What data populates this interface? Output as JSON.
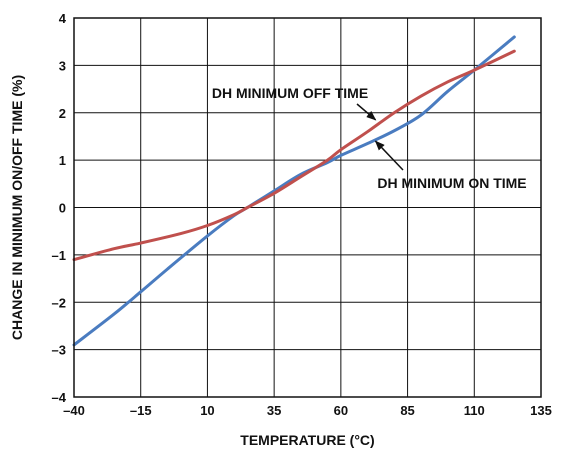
{
  "chart_data": {
    "type": "line",
    "xlabel": "TEMPERATURE (°C)",
    "ylabel": "CHANGE IN MINIMUM ON/OFF TIME (%)",
    "xlim": [
      -40,
      135
    ],
    "ylim": [
      -4,
      4
    ],
    "x_ticks": [
      -40,
      -15,
      10,
      35,
      60,
      85,
      110,
      135
    ],
    "x_tick_labels": [
      "–40",
      "–15",
      "10",
      "35",
      "60",
      "85",
      "110",
      "135"
    ],
    "y_ticks": [
      -4,
      -3,
      -2,
      -1,
      0,
      1,
      2,
      3,
      4
    ],
    "y_tick_labels": [
      "–4",
      "–3",
      "–2",
      "–1",
      "0",
      "1",
      "2",
      "3",
      "4"
    ],
    "grid": true,
    "series": [
      {
        "name": "DH MINIMUM OFF TIME",
        "color": "#c0504d",
        "x": [
          -40,
          -25,
          -15,
          0,
          10,
          20,
          25,
          35,
          45,
          55,
          60,
          70,
          80,
          90,
          100,
          110,
          125
        ],
        "y": [
          -1.1,
          -0.87,
          -0.75,
          -0.55,
          -0.38,
          -0.15,
          0.0,
          0.3,
          0.65,
          1.0,
          1.22,
          1.6,
          2.0,
          2.35,
          2.65,
          2.9,
          3.3
        ]
      },
      {
        "name": "DH MINIMUM ON TIME",
        "color": "#4a7cc0",
        "x": [
          -40,
          -25,
          -15,
          -5,
          10,
          20,
          25,
          35,
          45,
          55,
          60,
          70,
          80,
          90,
          100,
          110,
          125
        ],
        "y": [
          -2.9,
          -2.25,
          -1.78,
          -1.3,
          -0.6,
          -0.17,
          0.0,
          0.35,
          0.7,
          0.95,
          1.1,
          1.35,
          1.62,
          1.95,
          2.45,
          2.9,
          3.6
        ]
      }
    ],
    "annotations": [
      {
        "text": "DH MINIMUM OFF TIME",
        "series": "DH MINIMUM OFF TIME",
        "x": 73,
        "y": 1.85
      },
      {
        "text": "DH MINIMUM ON TIME",
        "series": "DH MINIMUM ON TIME",
        "x": 73,
        "y": 1.4
      }
    ]
  }
}
